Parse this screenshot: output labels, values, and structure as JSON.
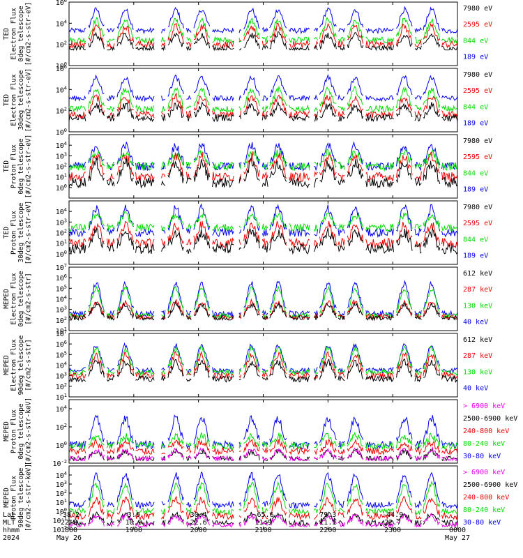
{
  "colors": {
    "blue": "#0000ee",
    "red": "#ee0000",
    "green": "#00dd00",
    "black": "#000000",
    "magenta": "#ee00ee"
  },
  "chart_data": [
    {
      "type": "line",
      "ylabel_lines": [
        "TED",
        "Electron Flux",
        "0deg telescope",
        "[#/cm2-s-str-eV]"
      ],
      "yscale": "log",
      "ylim": [
        1,
        1000000
      ],
      "y_ticks": [
        {
          "base": "10",
          "exp": "6",
          "v": 1000000
        },
        {
          "base": "10",
          "exp": "4",
          "v": 10000
        },
        {
          "base": "10",
          "exp": "2",
          "v": 100
        },
        {
          "base": "10",
          "exp": "0",
          "v": 1
        }
      ],
      "series": [
        {
          "name": "7980 eV",
          "color": "black",
          "floor": 30,
          "level": 40,
          "peak": 800,
          "noise": 0.3
        },
        {
          "name": "2595 eV",
          "color": "red",
          "floor": 50,
          "level": 100,
          "peak": 5000,
          "noise": 0.35
        },
        {
          "name": "844 eV",
          "color": "green",
          "floor": 60,
          "level": 250,
          "peak": 20000,
          "noise": 0.3
        },
        {
          "name": "189 eV",
          "color": "blue",
          "floor": 300,
          "level": 2000,
          "peak": 200000,
          "noise": 0.25
        }
      ]
    },
    {
      "type": "line",
      "ylabel_lines": [
        "TED",
        "Electron Flux",
        "30deg telescope",
        "[#/cm2-s-str-eV]"
      ],
      "yscale": "log",
      "ylim": [
        1,
        1000000
      ],
      "y_ticks": [
        {
          "base": "10",
          "exp": "6",
          "v": 1000000
        },
        {
          "base": "10",
          "exp": "4",
          "v": 10000
        },
        {
          "base": "10",
          "exp": "2",
          "v": 100
        },
        {
          "base": "10",
          "exp": "0",
          "v": 1
        }
      ],
      "series": [
        {
          "name": "7980 eV",
          "color": "black",
          "floor": 10,
          "level": 20,
          "peak": 300,
          "noise": 0.35
        },
        {
          "name": "2595 eV",
          "color": "red",
          "floor": 10,
          "level": 40,
          "peak": 2000,
          "noise": 0.35
        },
        {
          "name": "844 eV",
          "color": "green",
          "floor": 20,
          "level": 150,
          "peak": 10000,
          "noise": 0.3
        },
        {
          "name": "189 eV",
          "color": "blue",
          "floor": 100,
          "level": 1500,
          "peak": 150000,
          "noise": 0.25
        }
      ]
    },
    {
      "type": "line",
      "ylabel_lines": [
        "TED",
        "Proton Flux",
        "0deg telescope",
        "[#/cm2-s-str-eV]"
      ],
      "yscale": "log",
      "ylim": [
        0.1,
        100000
      ],
      "y_ticks": [
        {
          "base": "10",
          "exp": "4",
          "v": 10000
        },
        {
          "base": "10",
          "exp": "3",
          "v": 1000
        },
        {
          "base": "10",
          "exp": "2",
          "v": 100
        },
        {
          "base": "10",
          "exp": "1",
          "v": 10
        },
        {
          "base": "10",
          "exp": "0",
          "v": 1
        }
      ],
      "series": [
        {
          "name": "7980 eV",
          "color": "black",
          "floor": 1,
          "level": 3,
          "peak": 200,
          "noise": 0.5
        },
        {
          "name": "2595 eV",
          "color": "red",
          "floor": 2,
          "level": 10,
          "peak": 1000,
          "noise": 0.45
        },
        {
          "name": "844 eV",
          "color": "green",
          "floor": 5,
          "level": 100,
          "peak": 2000,
          "noise": 0.4
        },
        {
          "name": "189 eV",
          "color": "blue",
          "floor": 10,
          "level": 100,
          "peak": 10000,
          "noise": 0.4
        }
      ]
    },
    {
      "type": "line",
      "ylabel_lines": [
        "TED",
        "Proton Flux",
        "30deg telescope",
        "[#/cm2-s-str-eV]"
      ],
      "yscale": "log",
      "ylim": [
        0.1,
        100000
      ],
      "y_ticks": [
        {
          "base": "10",
          "exp": "4",
          "v": 10000
        },
        {
          "base": "10",
          "exp": "3",
          "v": 1000
        },
        {
          "base": "10",
          "exp": "2",
          "v": 100
        },
        {
          "base": "10",
          "exp": "1",
          "v": 10
        },
        {
          "base": "10",
          "exp": "0",
          "v": 1
        }
      ],
      "series": [
        {
          "name": "7980 eV",
          "color": "black",
          "floor": 1,
          "level": 3,
          "peak": 100,
          "noise": 0.5
        },
        {
          "name": "2595 eV",
          "color": "red",
          "floor": 2,
          "level": 10,
          "peak": 500,
          "noise": 0.45
        },
        {
          "name": "844 eV",
          "color": "green",
          "floor": 5,
          "level": 300,
          "peak": 5000,
          "noise": 0.35
        },
        {
          "name": "189 eV",
          "color": "blue",
          "floor": 10,
          "level": 100,
          "peak": 20000,
          "noise": 0.4
        }
      ]
    },
    {
      "type": "line",
      "ylabel_lines": [
        "MEPED",
        "Electron Flux",
        "0deg telescope",
        "[#/cm2-s-str]"
      ],
      "yscale": "log",
      "ylim": [
        10,
        10000000
      ],
      "y_ticks": [
        {
          "base": "10",
          "exp": "7",
          "v": 10000000
        },
        {
          "base": "10",
          "exp": "6",
          "v": 1000000
        },
        {
          "base": "10",
          "exp": "5",
          "v": 100000
        },
        {
          "base": "10",
          "exp": "4",
          "v": 10000
        },
        {
          "base": "10",
          "exp": "3",
          "v": 1000
        },
        {
          "base": "10",
          "exp": "2",
          "v": 100
        },
        {
          "base": "10",
          "exp": "1",
          "v": 10
        }
      ],
      "series": [
        {
          "name": "612 keV",
          "color": "black",
          "floor": 100,
          "level": 150,
          "peak": 3000,
          "noise": 0.25
        },
        {
          "name": "287 keV",
          "color": "red",
          "floor": 100,
          "level": 200,
          "peak": 5000,
          "noise": 0.25
        },
        {
          "name": "130 keV",
          "color": "green",
          "floor": 100,
          "level": 250,
          "peak": 100000,
          "noise": 0.25
        },
        {
          "name": "40 keV",
          "color": "blue",
          "floor": 150,
          "level": 400,
          "peak": 300000,
          "noise": 0.25
        }
      ]
    },
    {
      "type": "line",
      "ylabel_lines": [
        "MEPED",
        "Electron Flux",
        "90deg telescope",
        "[#/cm2-s-str]"
      ],
      "yscale": "log",
      "ylim": [
        10,
        10000000
      ],
      "y_ticks": [
        {
          "base": "10",
          "exp": "7",
          "v": 10000000
        },
        {
          "base": "10",
          "exp": "6",
          "v": 1000000
        },
        {
          "base": "10",
          "exp": "5",
          "v": 100000
        },
        {
          "base": "10",
          "exp": "4",
          "v": 10000
        },
        {
          "base": "10",
          "exp": "3",
          "v": 1000
        },
        {
          "base": "10",
          "exp": "2",
          "v": 100
        },
        {
          "base": "10",
          "exp": "1",
          "v": 10
        }
      ],
      "series": [
        {
          "name": "612 keV",
          "color": "black",
          "floor": 100,
          "level": 500,
          "peak": 20000,
          "noise": 0.3
        },
        {
          "name": "287 keV",
          "color": "red",
          "floor": 100,
          "level": 1000,
          "peak": 100000,
          "noise": 0.3
        },
        {
          "name": "130 keV",
          "color": "green",
          "floor": 100,
          "level": 2000,
          "peak": 400000,
          "noise": 0.25
        },
        {
          "name": "40 keV",
          "color": "blue",
          "floor": 150,
          "level": 3000,
          "peak": 700000,
          "noise": 0.25
        }
      ]
    },
    {
      "type": "line",
      "ylabel_lines": [
        "MEPED",
        "Proton Flux",
        "0deg telescope",
        "[#/cm2-s-str-keV]"
      ],
      "yscale": "log",
      "ylim": [
        0.01,
        100000
      ],
      "y_ticks": [
        {
          "base": "10",
          "exp": "4",
          "v": 10000
        },
        {
          "base": "10",
          "exp": "2",
          "v": 100
        },
        {
          "base": "10",
          "exp": "0",
          "v": 1
        },
        {
          "base": "10",
          "exp": "-2",
          "v": 0.01
        }
      ],
      "series": [
        {
          "name": "> 6900 keV",
          "color": "magenta",
          "floor": 0.02,
          "level": 0.03,
          "peak": 0.3,
          "noise": 0.3
        },
        {
          "name": "2500-6900 keV",
          "color": "black",
          "floor": 0.02,
          "level": 0.03,
          "peak": 0.2,
          "noise": 0.3
        },
        {
          "name": "240-800 keV",
          "color": "red",
          "floor": 0.1,
          "level": 0.2,
          "peak": 2,
          "noise": 0.4
        },
        {
          "name": "80-240 keV",
          "color": "green",
          "floor": 0.3,
          "level": 0.8,
          "peak": 10,
          "noise": 0.4
        },
        {
          "name": "30-80 keV",
          "color": "blue",
          "floor": 0.3,
          "level": 1,
          "peak": 1000,
          "noise": 0.45
        }
      ]
    },
    {
      "type": "line",
      "ylabel_lines": [
        "MEPED",
        "Proton Flux",
        "90deg telescope",
        "[#/cm2-s-str-keV]"
      ],
      "yscale": "log",
      "ylim": [
        0.01,
        100000
      ],
      "y_ticks": [
        {
          "base": "10",
          "exp": "4",
          "v": 10000
        },
        {
          "base": "10",
          "exp": "3",
          "v": 1000
        },
        {
          "base": "10",
          "exp": "2",
          "v": 100
        },
        {
          "base": "10",
          "exp": "1",
          "v": 10
        },
        {
          "base": "10",
          "exp": "0",
          "v": 1
        },
        {
          "base": "10",
          "exp": "-1",
          "v": 0.1
        },
        {
          "base": "10",
          "exp": "-2",
          "v": 0.01
        }
      ],
      "series": [
        {
          "name": "> 6900 keV",
          "color": "magenta",
          "floor": 0.02,
          "level": 0.03,
          "peak": 0.3,
          "noise": 0.3
        },
        {
          "name": "2500-6900 keV",
          "color": "black",
          "floor": 0.02,
          "level": 0.05,
          "peak": 0.5,
          "noise": 0.3
        },
        {
          "name": "240-800 keV",
          "color": "red",
          "floor": 0.05,
          "level": 0.3,
          "peak": 20,
          "noise": 0.4
        },
        {
          "name": "80-240 keV",
          "color": "green",
          "floor": 0.1,
          "level": 1,
          "peak": 1000,
          "noise": 0.35
        },
        {
          "name": "30-80 keV",
          "color": "blue",
          "floor": 1,
          "level": 5,
          "peak": 10000,
          "noise": 0.35
        }
      ]
    }
  ],
  "time_axis": {
    "row_labels": [
      "Lat",
      "MLT",
      "hhmm",
      "2024"
    ],
    "time_range_hours": [
      18,
      24
    ],
    "ticks": [
      {
        "t": 18.0,
        "lat": "-38.2",
        "mlt": "22.8",
        "hhmm": "1800",
        "date": "May 26"
      },
      {
        "t": 19.0,
        "lat": "3.6",
        "mlt": "10.9",
        "hhmm": "1900",
        "date": ""
      },
      {
        "t": 20.0,
        "lat": "30.4",
        "mlt": "22.6",
        "hhmm": "2000",
        "date": ""
      },
      {
        "t": 21.0,
        "lat": "-65.6",
        "mlt": "11.9",
        "hhmm": "2100",
        "date": ""
      },
      {
        "t": 22.0,
        "lat": "79.3",
        "mlt": "11.1",
        "hhmm": "2200",
        "date": ""
      },
      {
        "t": 23.0,
        "lat": "-44.9",
        "mlt": "22.7",
        "hhmm": "2300",
        "date": ""
      },
      {
        "t": 24.0,
        "lat": "",
        "mlt": "",
        "hhmm": "0000",
        "date": "May 27"
      }
    ]
  }
}
